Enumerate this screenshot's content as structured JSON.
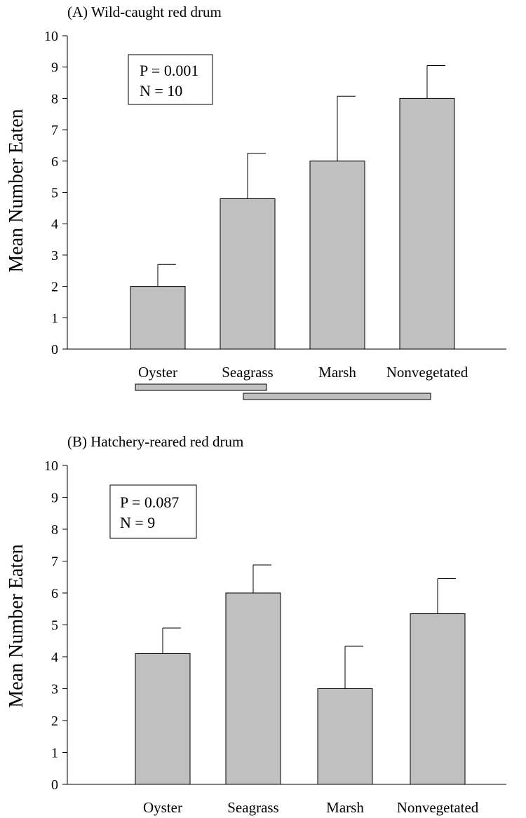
{
  "chart_data": [
    {
      "type": "bar",
      "title": "(A) Wild-caught red drum",
      "ylabel": "Mean Number Eaten",
      "xlabel": "",
      "ylim": [
        0,
        10
      ],
      "yticks": [
        "0",
        "1",
        "2",
        "3",
        "4",
        "5",
        "6",
        "7",
        "8",
        "9",
        "10"
      ],
      "categories": [
        "Oyster",
        "Seagrass",
        "Marsh",
        "Nonvegetated"
      ],
      "values": [
        2.0,
        4.8,
        6.0,
        8.0
      ],
      "error_upper": [
        0.7,
        1.45,
        2.07,
        1.05
      ],
      "stats": [
        "P = 0.001",
        "N = 10"
      ],
      "homogeneous_groups": [
        {
          "categories": [
            "Oyster",
            "Seagrass"
          ]
        },
        {
          "categories": [
            "Seagrass",
            "Marsh",
            "Nonvegetated"
          ]
        }
      ],
      "bar_color": "#c0c0c0",
      "grid": false
    },
    {
      "type": "bar",
      "title": "(B) Hatchery-reared red drum",
      "ylabel": "Mean Number Eaten",
      "xlabel": "",
      "ylim": [
        0,
        10
      ],
      "yticks": [
        "0",
        "1",
        "2",
        "3",
        "4",
        "5",
        "6",
        "7",
        "8",
        "9",
        "10"
      ],
      "categories": [
        "Oyster",
        "Seagrass",
        "Marsh",
        "Nonvegetated"
      ],
      "values": [
        4.1,
        6.0,
        3.0,
        5.35
      ],
      "error_upper": [
        0.8,
        0.88,
        1.33,
        1.1
      ],
      "stats": [
        "P = 0.087",
        "N = 9"
      ],
      "homogeneous_groups": [],
      "bar_color": "#c0c0c0",
      "grid": false
    }
  ]
}
